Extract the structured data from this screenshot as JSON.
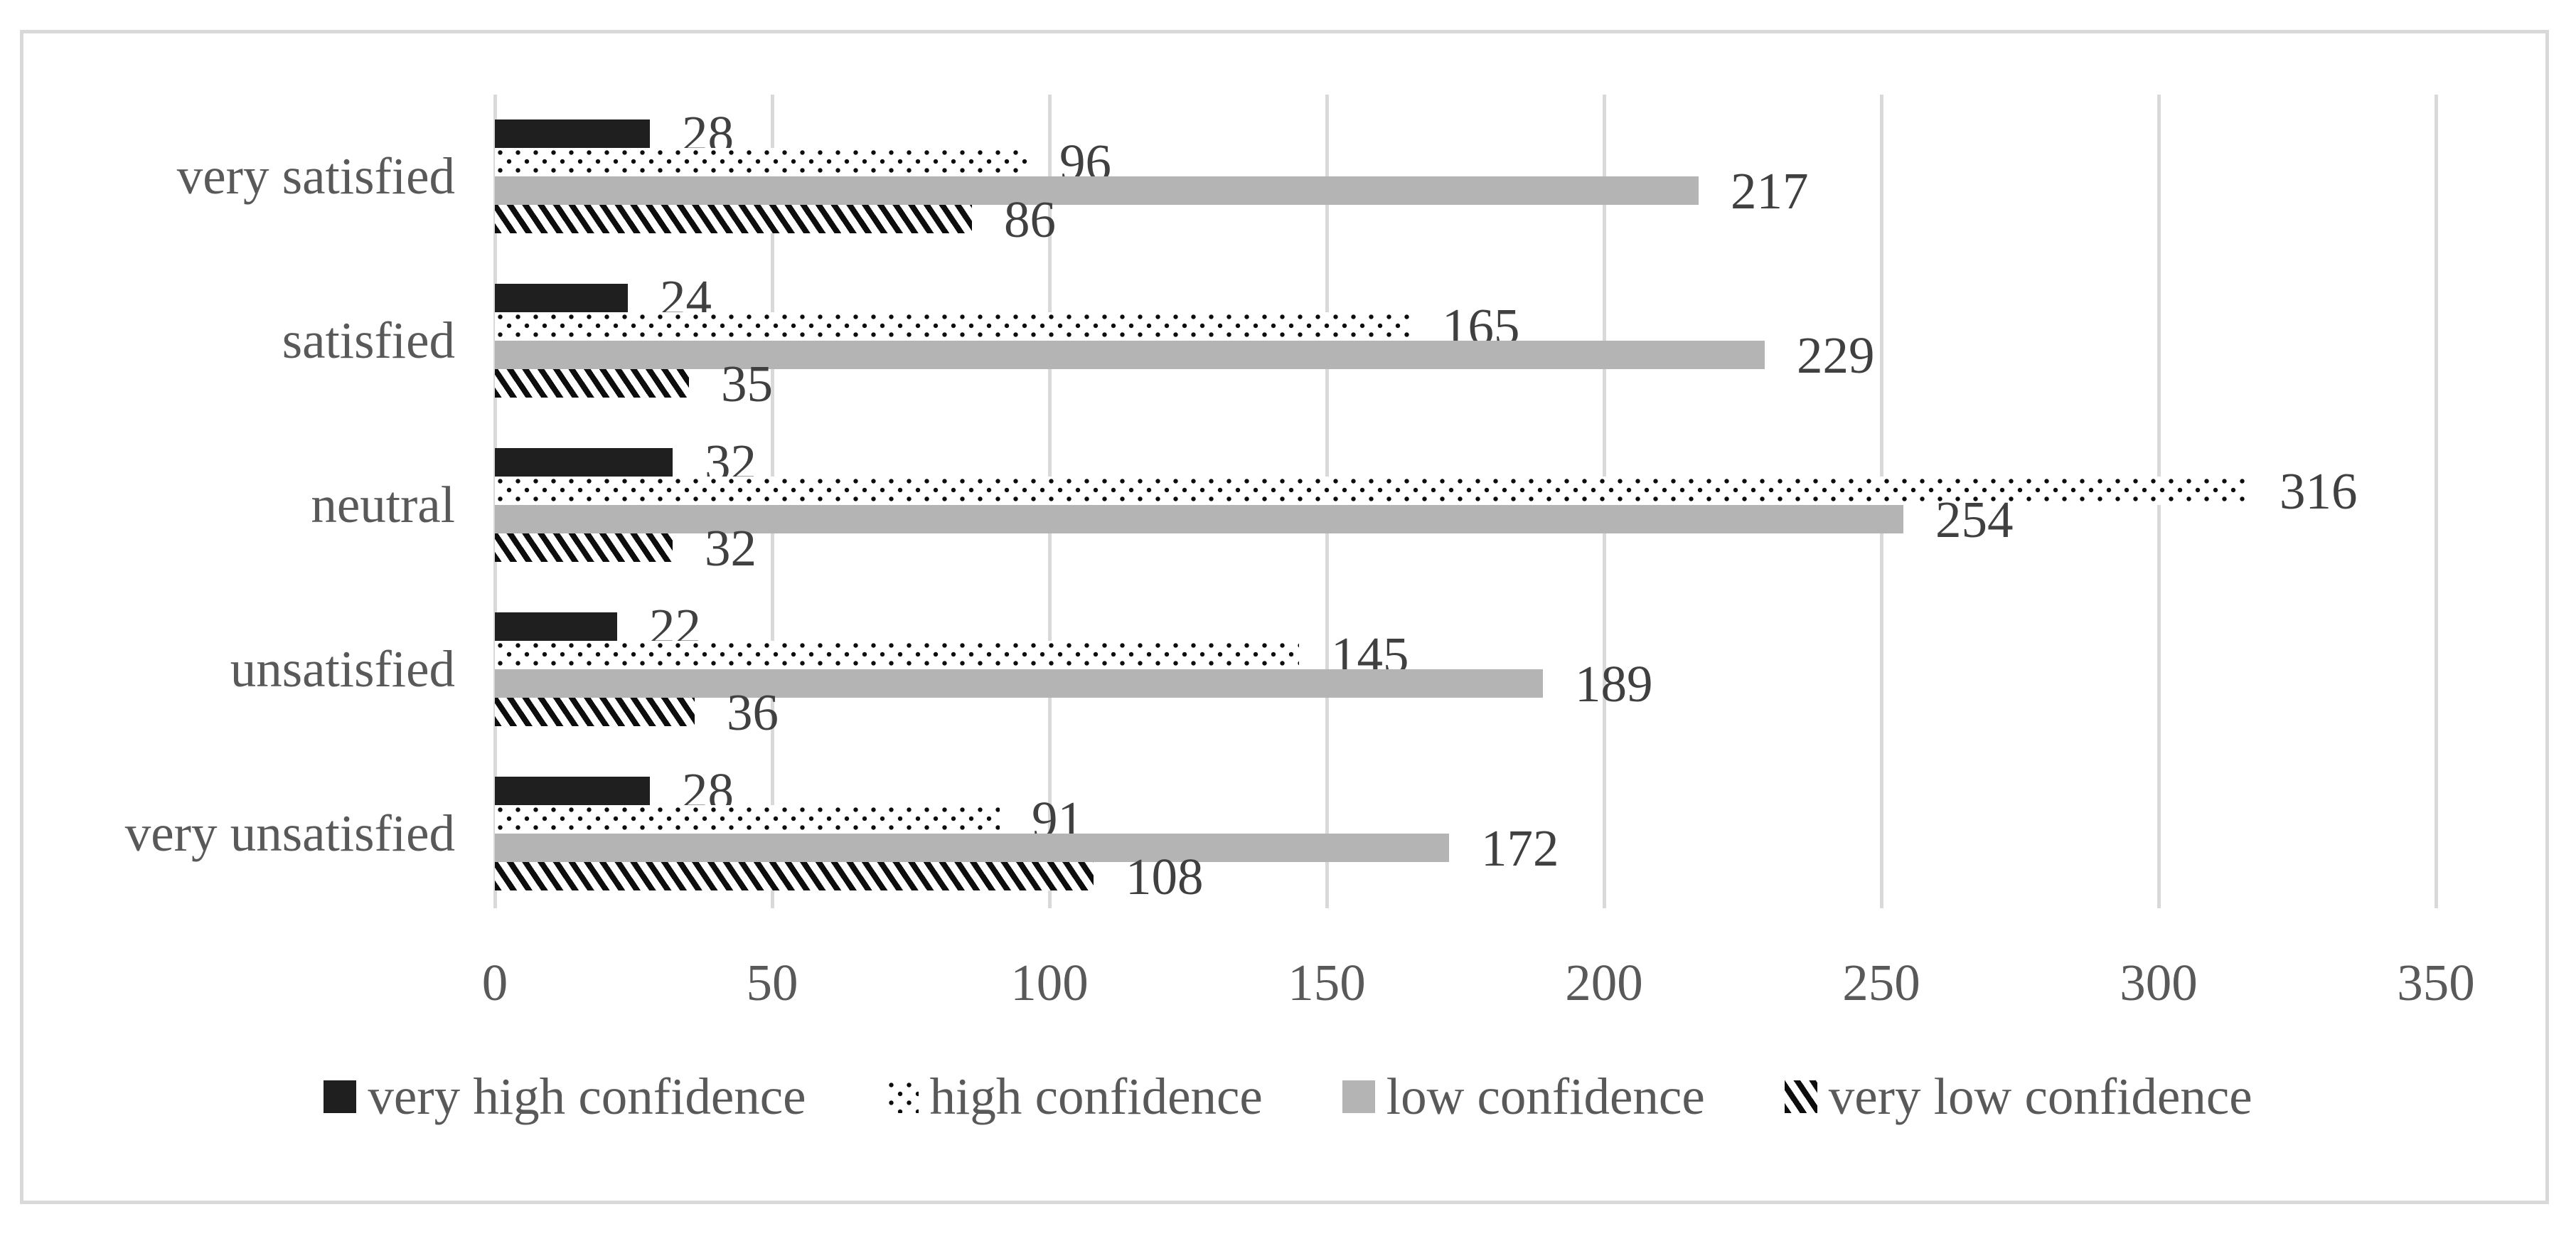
{
  "chart_data": {
    "type": "bar",
    "orientation": "horizontal",
    "title": "",
    "xlabel": "",
    "ylabel": "",
    "categories": [
      "very satisfied",
      "satisfied",
      "neutral",
      "unsatisfied",
      "very unsatisfied"
    ],
    "series": [
      {
        "name": "very high confidence",
        "pattern": "solid-dark",
        "values": [
          28,
          24,
          32,
          22,
          28
        ]
      },
      {
        "name": "high confidence",
        "pattern": "dots",
        "values": [
          96,
          165,
          316,
          145,
          91
        ]
      },
      {
        "name": "low confidence",
        "pattern": "solid-gray",
        "values": [
          217,
          229,
          254,
          189,
          172
        ]
      },
      {
        "name": "very low confidence",
        "pattern": "diagonal-stripes",
        "values": [
          86,
          35,
          32,
          36,
          108
        ]
      }
    ],
    "x_axis": {
      "min": 0,
      "max": 350,
      "tick_step": 50,
      "tick_labels": [
        "0",
        "50",
        "100",
        "150",
        "200",
        "250",
        "300",
        "350"
      ]
    },
    "data_labels_visible": true,
    "grid": "vertical-only",
    "legend_position": "bottom",
    "colors": {
      "series_dark": "#1f1f1f",
      "series_gray": "#b4b4b4",
      "pattern_ink": "#0d0d0d",
      "gridline": "#d9d9d9",
      "frame_border": "#d9d9d9",
      "data_label_text": "#404040",
      "axis_text": "#595959",
      "background": "#ffffff"
    }
  }
}
